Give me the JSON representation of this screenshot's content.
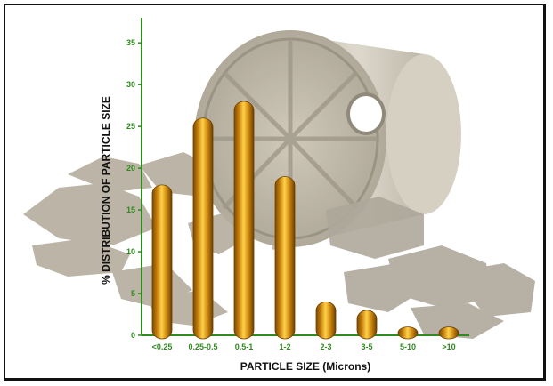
{
  "chart_data": {
    "type": "bar",
    "categories": [
      "<0.25",
      "0.25-0.5",
      "0.5-1",
      "1-2",
      "2-3",
      "3-5",
      "5-10",
      ">10"
    ],
    "values": [
      18,
      26,
      28,
      19,
      4,
      3,
      1,
      1
    ],
    "xlabel": "PARTICLE SIZE (Microns)",
    "ylabel": "% DISTRIBUTION OF PARTICLE SIZE",
    "ylim": [
      0,
      38
    ],
    "yticks": [
      0,
      5,
      10,
      15,
      20,
      25,
      30,
      35
    ],
    "grid": false,
    "legend": "none",
    "colors": {
      "bar_dark": "#7a4a00",
      "bar_mid": "#d08a10",
      "bar_light": "#ffd24a",
      "axis": "#2e8b1e",
      "tick_text": "#2e8b1e",
      "label_text": "#111111",
      "background_image_tone": "#a8a090"
    },
    "background_image": "grinding-drum-and-rock-fragments"
  }
}
